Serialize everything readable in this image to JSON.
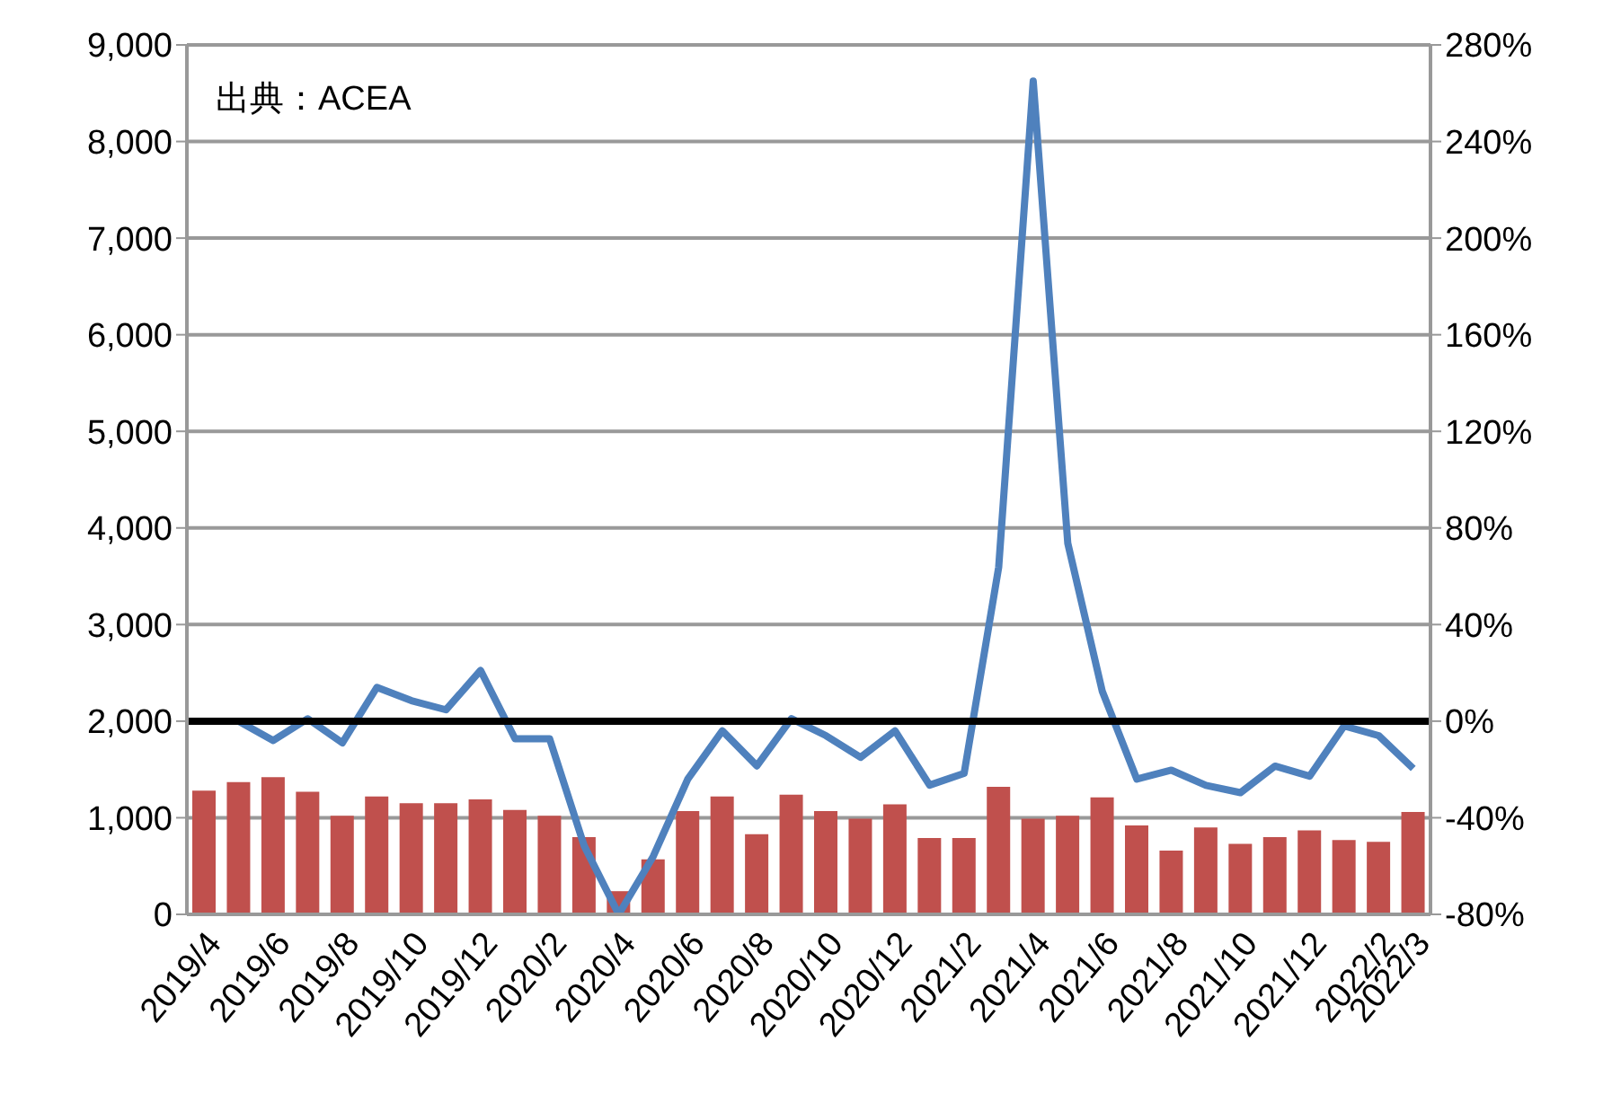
{
  "chart_data": {
    "type": "bar",
    "categories": [
      "2019/4",
      null,
      "2019/6",
      null,
      "2019/8",
      null,
      "2019/10",
      null,
      "2019/12",
      null,
      "2020/2",
      null,
      "2020/4",
      null,
      "2020/6",
      null,
      "2020/8",
      null,
      "2020/10",
      null,
      "2020/12",
      null,
      "2021/2",
      null,
      "2021/4",
      null,
      "2021/6",
      null,
      "2021/8",
      null,
      "2021/10",
      null,
      "2021/12",
      null,
      "2022/2",
      "2022/3"
    ],
    "series": [
      {
        "color": "#c0504d",
        "values": [
          1280,
          1370,
          1420,
          1270,
          1020,
          1220,
          1150,
          1150,
          1190,
          1080,
          1020,
          800,
          240,
          570,
          1070,
          1220,
          830,
          1240,
          1070,
          990,
          1140,
          790,
          790,
          1320,
          990,
          1020,
          1210,
          920,
          660,
          900,
          730,
          800,
          870,
          770,
          750,
          1060
        ]
      },
      {
        "type": "line",
        "axis": "y2",
        "color": "#4f81bd",
        "values": [
          0,
          0,
          -8,
          1,
          -9,
          14,
          8.5,
          4.7,
          21,
          -7.3,
          -7.3,
          -51.6,
          -80,
          -56,
          -24,
          -4,
          -18.5,
          1,
          -6,
          -15,
          -4,
          -26.5,
          -21.6,
          63.7,
          265,
          73.7,
          12.3,
          -24,
          -20.3,
          -26.6,
          -29.6,
          -18.6,
          -22.8,
          -2,
          -6,
          -19.6
        ]
      }
    ],
    "ylim": [
      0,
      9000
    ],
    "yticks": [
      {
        "value": 0,
        "label": "0"
      },
      {
        "value": 1000,
        "label": "1,000"
      },
      {
        "value": 2000,
        "label": "2,000"
      },
      {
        "value": 3000,
        "label": "3,000"
      },
      {
        "value": 4000,
        "label": "4,000"
      },
      {
        "value": 5000,
        "label": "5,000"
      },
      {
        "value": 6000,
        "label": "6,000"
      },
      {
        "value": 7000,
        "label": "7,000"
      },
      {
        "value": 8000,
        "label": "8,000"
      },
      {
        "value": 9000,
        "label": "9,000"
      }
    ],
    "y2lim": [
      -80,
      280
    ],
    "y2ticks": [
      {
        "value": -80,
        "label": "-80%"
      },
      {
        "value": -40,
        "label": "-40%"
      },
      {
        "value": 0,
        "label": "0%"
      },
      {
        "value": 40,
        "label": "40%"
      },
      {
        "value": 80,
        "label": "80%"
      },
      {
        "value": 120,
        "label": "120%"
      },
      {
        "value": 160,
        "label": "160%"
      },
      {
        "value": 200,
        "label": "200%"
      },
      {
        "value": 240,
        "label": "240%"
      },
      {
        "value": 280,
        "label": "280%"
      }
    ],
    "ref_lines": [
      {
        "axis": "y2",
        "value": 0,
        "color": "#000000"
      }
    ],
    "annotations": [
      "出典：ACEA"
    ],
    "grid": "y",
    "legend": false
  }
}
